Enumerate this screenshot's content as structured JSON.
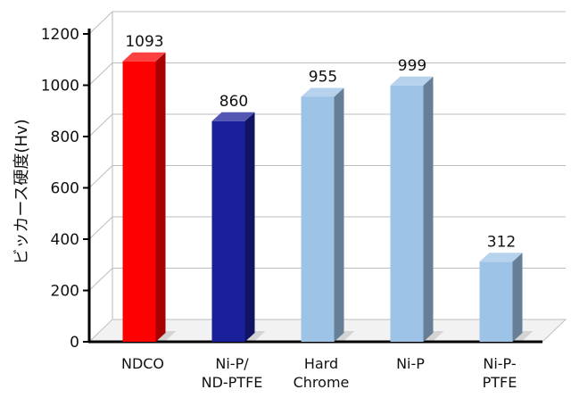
{
  "chart_data": {
    "type": "bar",
    "categories": [
      "NDCO",
      "Ni-P/\nND-PTFE",
      "Hard\nChrome",
      "Ni-P",
      "Ni-P-\nPTFE"
    ],
    "values": [
      1093,
      860,
      955,
      999,
      312
    ],
    "data_labels": [
      "1093",
      "860",
      "955",
      "999",
      "312"
    ],
    "bar_colors": [
      "#ff0000",
      "#1a1f9a",
      "#9dc3e6",
      "#9dc3e6",
      "#9dc3e6"
    ],
    "ylabel": "ビッカース硬度(Hv)",
    "xlabel": "",
    "ylim": [
      0,
      1200
    ],
    "yticks": [
      "0",
      "200",
      "400",
      "600",
      "800",
      "1000",
      "1200"
    ],
    "grid": true,
    "legend": "none"
  }
}
